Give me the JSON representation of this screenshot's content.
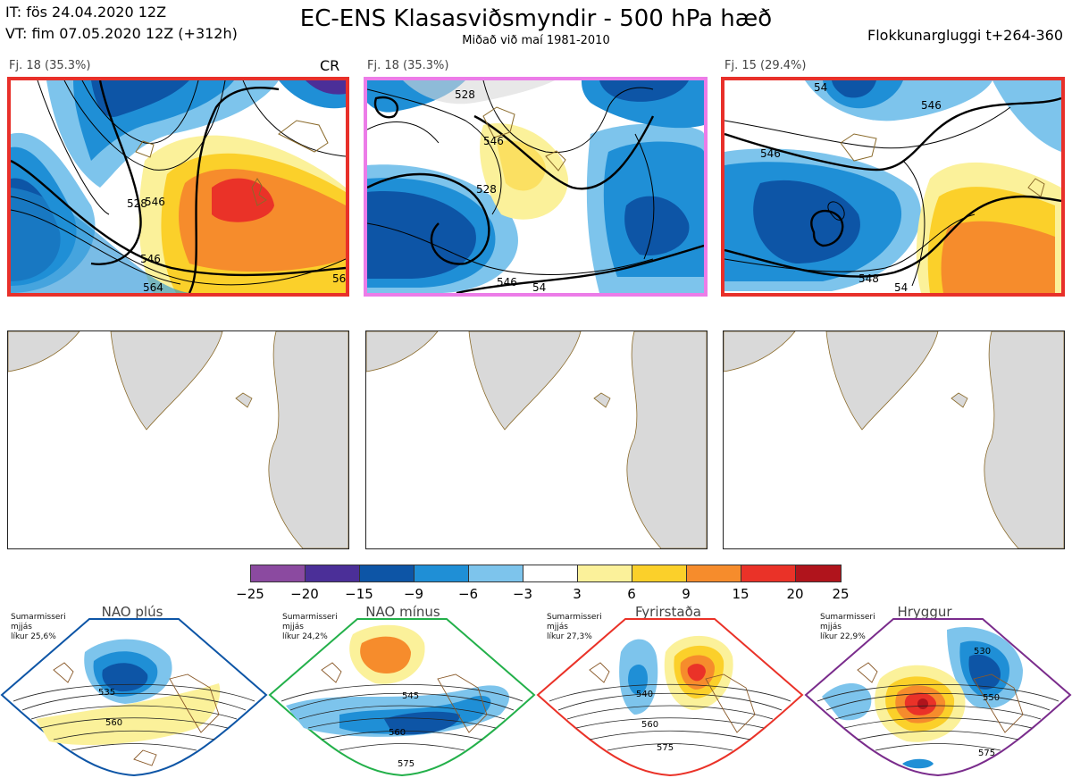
{
  "header": {
    "init_time": "IT: fös 24.04.2020 12Z",
    "valid_time": "VT: fim 07.05.2020 12Z  (+312h)",
    "title": "EC-ENS Klasasviðsmyndir - 500 hPa hæð",
    "subtitle": "Miðað við maí 1981-2010",
    "window": "Flokkunargluggi t+264-360"
  },
  "panels": [
    {
      "label": "Fj. 18 (35.3%)",
      "tag": "CR",
      "border": "#e8302a",
      "contours": {
        "a": "546",
        "b": "528",
        "c": "564",
        "d": "546",
        "e": "56"
      }
    },
    {
      "label": "Fj. 18 (35.3%)",
      "tag": "",
      "border": "#ec7ce8",
      "contours": {
        "a": "528",
        "b": "546",
        "c": "528",
        "d": "546",
        "e": "54"
      }
    },
    {
      "label": "Fj. 15 (29.4%)",
      "tag": "",
      "border": "#e8302a",
      "contours": {
        "a": "54",
        "b": "546",
        "c": "546",
        "d": "548",
        "e": "54"
      }
    }
  ],
  "colorbar": {
    "ticks": [
      "−25",
      "−20",
      "−15",
      "−9",
      "−6",
      "−3",
      "3",
      "6",
      "9",
      "15",
      "20",
      "25"
    ],
    "colors": [
      "#8b4aa0",
      "#4b2f98",
      "#0d55a6",
      "#1f8fd6",
      "#7dc4ec",
      "#ffffff",
      "#fbf19a",
      "#fbd02a",
      "#f68c2c",
      "#ea3228",
      "#b0141c"
    ]
  },
  "regimes": [
    {
      "name": "NAO plús",
      "season": "Sumarmisseri",
      "smoothing": "mjjás",
      "likelihood": "líkur 25,6%",
      "dot_color": "#0d55a6",
      "frame": "#0d55a6",
      "labels": [
        "535",
        "560"
      ]
    },
    {
      "name": "NAO mínus",
      "season": "Sumarmisseri",
      "smoothing": "mjjás",
      "likelihood": "líkur 24,2%",
      "dot_color": "#23b04a",
      "frame": "#23b04a",
      "labels": [
        "545",
        "560",
        "575"
      ]
    },
    {
      "name": "Fyrirstaða",
      "season": "Sumarmisseri",
      "smoothing": "mjjás",
      "likelihood": "líkur 27,3%",
      "dot_color": "#ea3228",
      "frame": "#ea3228",
      "labels": [
        "540",
        "560",
        "575"
      ]
    },
    {
      "name": "Hryggur",
      "season": "Sumarmisseri",
      "smoothing": "mjjás",
      "likelihood": "líkur 22,9%",
      "dot_color": "#ec7ce8",
      "frame": "#7a2c8c",
      "labels": [
        "530",
        "550",
        "575"
      ]
    }
  ]
}
